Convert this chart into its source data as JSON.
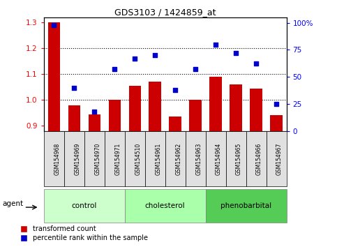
{
  "title": "GDS3103 / 1424859_at",
  "samples": [
    "GSM154968",
    "GSM154969",
    "GSM154970",
    "GSM154971",
    "GSM154510",
    "GSM154961",
    "GSM154962",
    "GSM154963",
    "GSM154964",
    "GSM154965",
    "GSM154966",
    "GSM154967"
  ],
  "bar_values": [
    1.3,
    0.98,
    0.945,
    1.0,
    1.055,
    1.07,
    0.935,
    1.0,
    1.09,
    1.06,
    1.045,
    0.94
  ],
  "scatter_values": [
    98,
    40,
    18,
    57,
    67,
    70,
    38,
    57,
    80,
    72,
    62,
    25
  ],
  "groups": [
    {
      "label": "control",
      "start": 0,
      "end": 3
    },
    {
      "label": "cholesterol",
      "start": 4,
      "end": 7
    },
    {
      "label": "phenobarbital",
      "start": 8,
      "end": 11
    }
  ],
  "group_colors": [
    "#ccffcc",
    "#aaffaa",
    "#55cc55"
  ],
  "ylim_left": [
    0.88,
    1.32
  ],
  "ylim_right": [
    0,
    105
  ],
  "yticks_left": [
    0.9,
    1.0,
    1.1,
    1.2,
    1.3
  ],
  "yticks_right": [
    0,
    25,
    50,
    75,
    100
  ],
  "ytick_labels_right": [
    "0",
    "25",
    "50",
    "75",
    "100%"
  ],
  "bar_color": "#cc0000",
  "scatter_color": "#0000cc",
  "bar_width": 0.6,
  "legend_items": [
    "transformed count",
    "percentile rank within the sample"
  ],
  "agent_label": "agent"
}
